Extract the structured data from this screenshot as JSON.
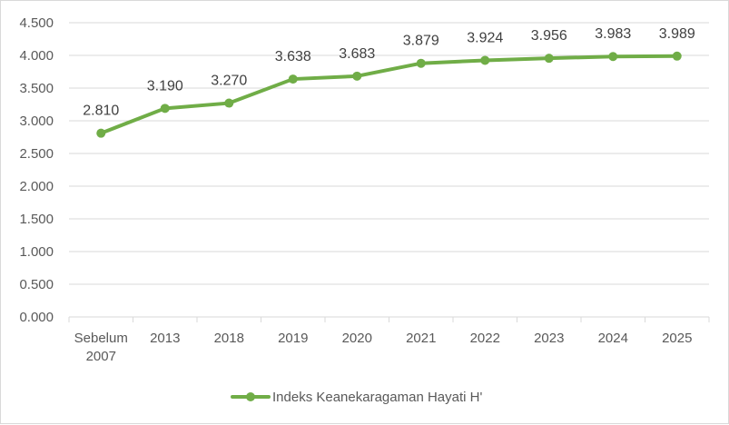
{
  "chart_data": {
    "type": "line",
    "title": "",
    "xlabel": "",
    "ylabel": "",
    "categories": [
      [
        "Sebelum",
        "2007"
      ],
      [
        "2013"
      ],
      [
        "2018"
      ],
      [
        "2019"
      ],
      [
        "2020"
      ],
      [
        "2021"
      ],
      [
        "2022"
      ],
      [
        "2023"
      ],
      [
        "2024"
      ],
      [
        "2025"
      ]
    ],
    "series": [
      {
        "name": "Indeks Keanekaragaman Hayati H'",
        "values": [
          2.81,
          3.19,
          3.27,
          3.638,
          3.683,
          3.879,
          3.924,
          3.956,
          3.983,
          3.989
        ],
        "data_labels": [
          "2.810",
          "3.190",
          "3.270",
          "3.638",
          "3.683",
          "3.879",
          "3.924",
          "3.956",
          "3.983",
          "3.989"
        ],
        "color": "#70ad47"
      }
    ],
    "ylim": [
      0,
      4.5
    ],
    "yticks": [
      "0.000",
      "0.500",
      "1.000",
      "1.500",
      "2.000",
      "2.500",
      "3.000",
      "3.500",
      "4.000",
      "4.500"
    ],
    "ytick_values": [
      0,
      0.5,
      1,
      1.5,
      2,
      2.5,
      3,
      3.5,
      4,
      4.5
    ],
    "grid": true,
    "gridline_color": "#d9d9d9",
    "axis_color": "#d9d9d9",
    "legend": "bottom"
  }
}
